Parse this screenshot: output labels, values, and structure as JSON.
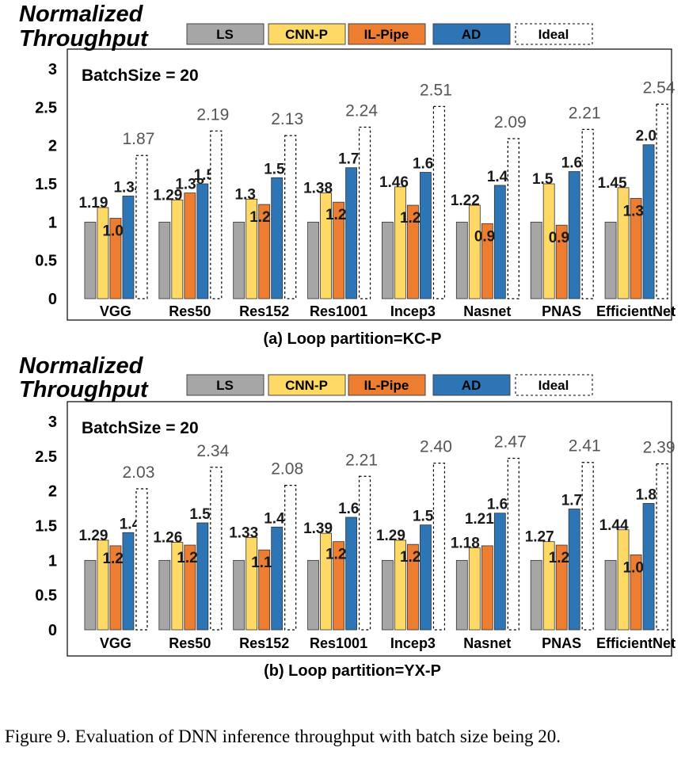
{
  "caption": "Figure 9.   Evaluation of DNN inference throughput with batch size being 20.",
  "chart_data": [
    {
      "type": "bar",
      "ylabel": "Normalized Throughput",
      "annotation": "BatchSize = 20",
      "subcaption": "(a) Loop partition=KC-P",
      "ylim": [
        0,
        3
      ],
      "yticks": [
        "0",
        "0.5",
        "1",
        "1.5",
        "2",
        "2.5",
        "3"
      ],
      "legend_position": "top",
      "categories": [
        "VGG",
        "Res50",
        "Res152",
        "Res1001",
        "Incep3",
        "Nasnet",
        "PNAS",
        "EfficientNet"
      ],
      "series": [
        {
          "name": "LS",
          "color": "#a6a6a6",
          "values": [
            1,
            1,
            1,
            1,
            1,
            1,
            1,
            1
          ],
          "labels": [
            "",
            "",
            "",
            "",
            "",
            "",
            "",
            ""
          ]
        },
        {
          "name": "CNN-P",
          "color": "#ffd966",
          "values": [
            1.19,
            1.29,
            1.3,
            1.38,
            1.46,
            1.22,
            1.5,
            1.45
          ],
          "labels": [
            "1.19",
            "1.29",
            "1.3",
            "1.38",
            "1.46",
            "1.22",
            "1.5",
            "1.45"
          ]
        },
        {
          "name": "IL-Pipe",
          "color": "#ed7d31",
          "values": [
            1.05,
            1.38,
            1.23,
            1.26,
            1.22,
            0.98,
            0.96,
            1.31
          ],
          "labels": [
            "1.05",
            "1.38",
            "1.23",
            "1.26",
            "1.22",
            "0.98",
            "0.96",
            "1.31"
          ]
        },
        {
          "name": "AD",
          "color": "#2e75b6",
          "values": [
            1.34,
            1.5,
            1.58,
            1.71,
            1.65,
            1.48,
            1.66,
            2.01
          ],
          "labels": [
            "1.34",
            "1.5",
            "1.58",
            "1.71",
            "1.65",
            "1.48",
            "1.66",
            "2.01"
          ]
        },
        {
          "name": "Ideal",
          "color": "#ffffff",
          "values": [
            1.87,
            2.19,
            2.13,
            2.24,
            2.51,
            2.09,
            2.21,
            2.54
          ],
          "labels": [
            "1.87",
            "2.19",
            "2.13",
            "2.24",
            "2.51",
            "2.09",
            "2.21",
            "2.54"
          ]
        }
      ]
    },
    {
      "type": "bar",
      "ylabel": "Normalized Throughput",
      "annotation": "BatchSize = 20",
      "subcaption": "(b) Loop partition=YX-P",
      "ylim": [
        0,
        3
      ],
      "yticks": [
        "0",
        "0.5",
        "1",
        "1.5",
        "2",
        "2.5",
        "3"
      ],
      "legend_position": "top",
      "categories": [
        "VGG",
        "Res50",
        "Res152",
        "Res1001",
        "Incep3",
        "Nasnet",
        "PNAS",
        "EfficientNet"
      ],
      "series": [
        {
          "name": "LS",
          "color": "#a6a6a6",
          "values": [
            1,
            1,
            1,
            1,
            1,
            1,
            1,
            1
          ],
          "labels": [
            "",
            "",
            "",
            "",
            "",
            "",
            "",
            ""
          ]
        },
        {
          "name": "CNN-P",
          "color": "#ffd966",
          "values": [
            1.29,
            1.26,
            1.33,
            1.39,
            1.29,
            1.18,
            1.27,
            1.44
          ],
          "labels": [
            "1.29",
            "1.26",
            "1.33",
            "1.39",
            "1.29",
            "1.18",
            "1.27",
            "1.44"
          ]
        },
        {
          "name": "IL-Pipe",
          "color": "#ed7d31",
          "values": [
            1.21,
            1.22,
            1.15,
            1.27,
            1.23,
            1.21,
            1.22,
            1.08
          ],
          "labels": [
            "1.21",
            "1.22",
            "1.15",
            "1.27",
            "1.23",
            "1.21",
            "1.22",
            "1.08"
          ]
        },
        {
          "name": "AD",
          "color": "#2e75b6",
          "values": [
            1.4,
            1.54,
            1.48,
            1.62,
            1.51,
            1.68,
            1.74,
            1.82
          ],
          "labels": [
            "1.4",
            "1.54",
            "1.48",
            "1.62",
            "1.51",
            "1.68",
            "1.74",
            "1.82"
          ]
        },
        {
          "name": "Ideal",
          "color": "#ffffff",
          "values": [
            2.03,
            2.34,
            2.08,
            2.21,
            2.4,
            2.47,
            2.41,
            2.39
          ],
          "labels": [
            "2.03",
            "2.34",
            "2.08",
            "2.21",
            "2.40",
            "2.47",
            "2.41",
            "2.39"
          ]
        }
      ]
    }
  ]
}
